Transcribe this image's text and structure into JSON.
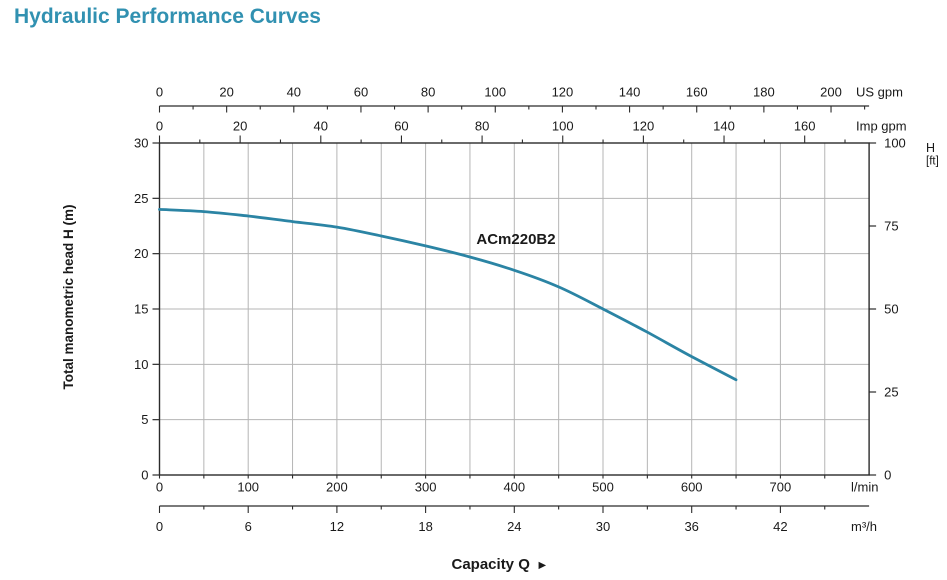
{
  "page": {
    "title": "Hydraulic Performance Curves",
    "title_color": "#3191b1",
    "background": "#ffffff"
  },
  "chart_data": {
    "type": "line",
    "title": "Hydraulic Performance Curves",
    "curve_label": "ACm220B2",
    "xlabel": "Capacity Q",
    "xlabel_arrow": "►",
    "grid": true,
    "legend_position": "none",
    "colors": {
      "curve": "#2b84a4",
      "grid": "#b5b5b5",
      "axis": "#2b2b2b",
      "text": "#1a1a1a"
    },
    "series": [
      {
        "name": "ACm220B2",
        "x_unit": "l/min",
        "y_unit": "m",
        "points": [
          [
            0,
            24.0
          ],
          [
            50,
            23.8
          ],
          [
            100,
            23.4
          ],
          [
            150,
            22.9
          ],
          [
            200,
            22.4
          ],
          [
            250,
            21.6
          ],
          [
            300,
            20.7
          ],
          [
            350,
            19.7
          ],
          [
            400,
            18.5
          ],
          [
            450,
            17.0
          ],
          [
            500,
            15.0
          ],
          [
            550,
            12.9
          ],
          [
            600,
            10.7
          ],
          [
            650,
            8.6
          ]
        ]
      }
    ],
    "axes": {
      "x_bottom_lmin": {
        "unit": "l/min",
        "major_ticks": [
          0,
          100,
          200,
          300,
          400,
          500,
          600,
          700
        ],
        "minor_step": 50,
        "range_lmin": [
          0,
          800
        ]
      },
      "x_bottom_m3h": {
        "unit": "m³/h",
        "major_ticks": [
          0,
          6,
          12,
          18,
          24,
          30,
          36,
          42
        ],
        "minor_step": 3,
        "lmin_per_unit": 16.6667
      },
      "x_top_usgpm": {
        "unit": "US gpm",
        "major_ticks": [
          0,
          20,
          40,
          60,
          80,
          100,
          120,
          140,
          160,
          180,
          200
        ],
        "minor_step": 10,
        "lmin_per_unit": 3.78541
      },
      "x_top_impgpm": {
        "unit": "Imp gpm",
        "major_ticks": [
          0,
          20,
          40,
          60,
          80,
          100,
          120,
          140,
          160
        ],
        "minor_step": 10,
        "lmin_per_unit": 4.54609
      },
      "y_left_m": {
        "label": "Total manometric head H (m)",
        "major_ticks": [
          0,
          5,
          10,
          15,
          20,
          25,
          30
        ],
        "range_m": [
          0,
          30
        ]
      },
      "y_right_ft": {
        "unit_line1": "H",
        "unit_line2": "[ft]",
        "major_ticks": [
          0,
          25,
          50,
          75,
          100
        ],
        "range_ft": [
          0,
          100
        ]
      }
    }
  }
}
